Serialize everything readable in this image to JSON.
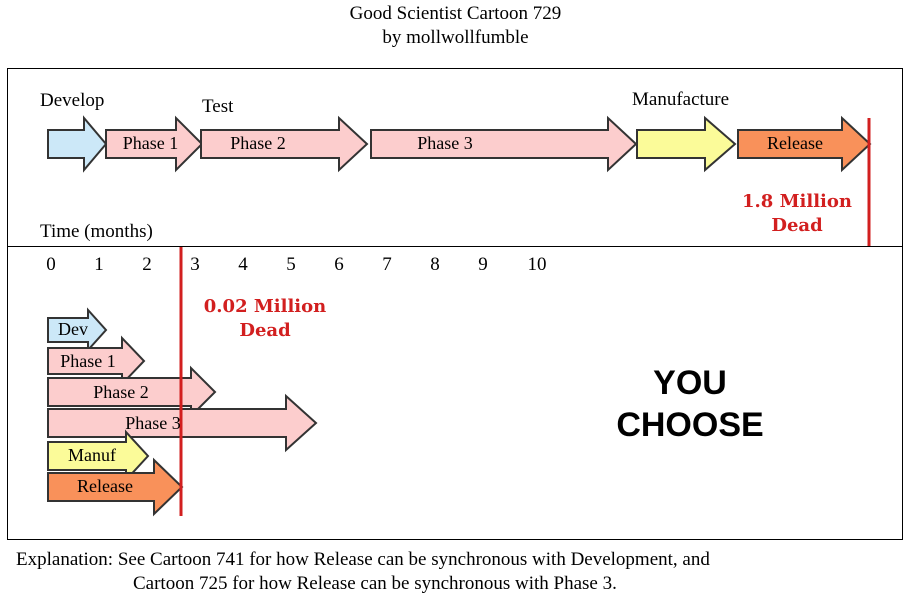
{
  "title": {
    "line1": "Good Scientist Cartoon 729",
    "line2": "by mollwollfumble"
  },
  "top_section": {
    "labels": {
      "develop": "Develop",
      "test": "Test",
      "manufacture": "Manufacture",
      "time": "Time (months)"
    },
    "arrows": [
      {
        "label": "",
        "color": "#cce8f8"
      },
      {
        "label": "Phase 1",
        "color": "#fccdcd"
      },
      {
        "label": "Phase 2",
        "color": "#fccdcd"
      },
      {
        "label": "Phase 3",
        "color": "#fccdcd"
      },
      {
        "label": "",
        "color": "#fbfb99"
      },
      {
        "label": "Release",
        "color": "#f9915a"
      }
    ],
    "dead_line1": "1.8 Million",
    "dead_line2": "Dead"
  },
  "timeline": {
    "ticks": [
      "0",
      "1",
      "2",
      "3",
      "4",
      "5",
      "6",
      "7",
      "8",
      "9",
      "10"
    ]
  },
  "bottom_section": {
    "arrows": [
      {
        "label": "Dev",
        "color": "#cce8f8"
      },
      {
        "label": "Phase 1",
        "color": "#fccdcd"
      },
      {
        "label": "Phase 2",
        "color": "#fccdcd"
      },
      {
        "label": "Phase 3",
        "color": "#fccdcd"
      },
      {
        "label": "Manuf",
        "color": "#fbfb99"
      },
      {
        "label": "Release",
        "color": "#f9915a"
      }
    ],
    "dead_line1": "0.02 Million",
    "dead_line2": "Dead",
    "you_choose_line1": "YOU",
    "you_choose_line2": "CHOOSE"
  },
  "explanation": {
    "line1": "Explanation: See Cartoon 741 for how Release can be synchronous with Development, and",
    "line2": "Cartoon 725 for how Release can be synchronous with Phase 3."
  },
  "colors": {
    "deadline_red": "#d21f1f",
    "outline": "#333333"
  }
}
